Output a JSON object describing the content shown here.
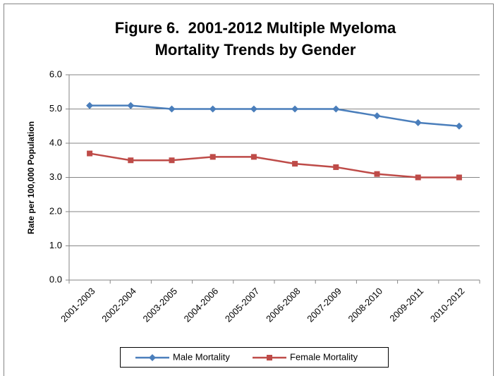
{
  "chart_data": {
    "type": "line",
    "title": [
      "Figure 6.  2001-2012 Multiple Myeloma",
      "Mortality Trends by Gender"
    ],
    "y_label": "Rate per 100,000 Population",
    "categories": [
      "2001-2003",
      "2002-2004",
      "2003-2005",
      "2004-2006",
      "2005-2007",
      "2006-2008",
      "2007-2009",
      "2008-2010",
      "2009-2011",
      "2010-2012"
    ],
    "series": [
      {
        "name": "Male Mortality",
        "color": "#4a7ebb",
        "marker": "diamond",
        "values": [
          5.1,
          5.1,
          5.0,
          5.0,
          5.0,
          5.0,
          5.0,
          4.8,
          4.6,
          4.5
        ]
      },
      {
        "name": "Female Mortality",
        "color": "#be4b48",
        "marker": "square",
        "values": [
          3.7,
          3.5,
          3.5,
          3.6,
          3.6,
          3.4,
          3.3,
          3.1,
          3.0,
          3.0
        ]
      }
    ],
    "ylim": [
      0,
      6
    ],
    "yticks": [
      {
        "value": 0,
        "label": "0.0"
      },
      {
        "value": 1,
        "label": "1.0"
      },
      {
        "value": 2,
        "label": "2.0"
      },
      {
        "value": 3,
        "label": "3.0"
      },
      {
        "value": 4,
        "label": "4.0"
      },
      {
        "value": 5,
        "label": "5.0"
      },
      {
        "value": 6,
        "label": "6.0"
      }
    ],
    "grid": true,
    "legend": "bottom"
  }
}
